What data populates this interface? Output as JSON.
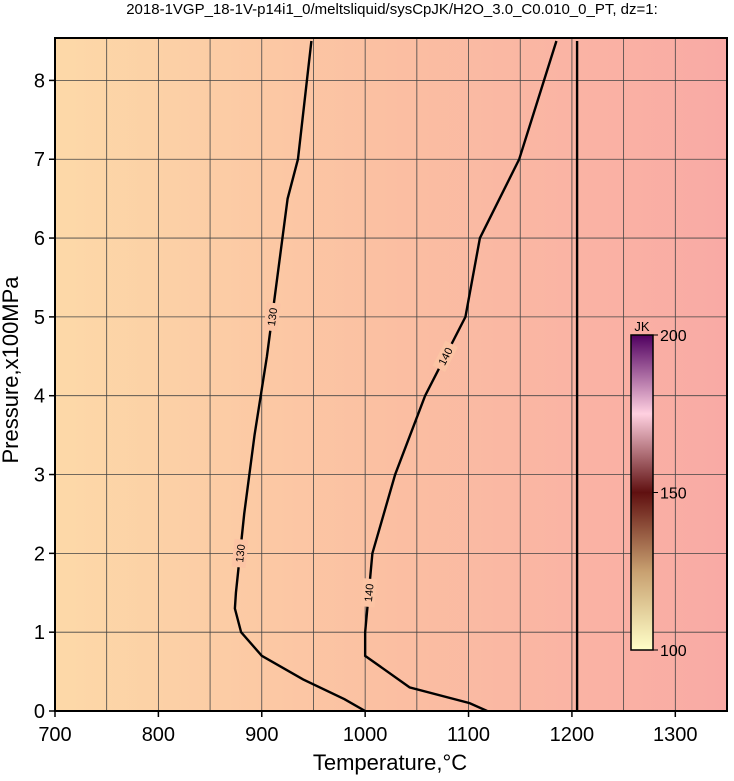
{
  "chart_data": {
    "type": "contour",
    "title": "2018-1VGP_18-1V-p14i1_0/meltsliquid/sysCpJK/H2O_3.0_C0.010_0_PT, dz=1:",
    "x_label": "Temperature,°C",
    "y_label": "Pressure,x100MPa",
    "xlim": [
      700,
      1350
    ],
    "ylim": [
      0,
      8.5
    ],
    "xticks": [
      700,
      800,
      900,
      1000,
      1100,
      1200,
      1300
    ],
    "xminor": [
      750,
      850,
      950,
      1050,
      1150,
      1250,
      1350
    ],
    "yticks": [
      0,
      1,
      2,
      3,
      4,
      5,
      6,
      7,
      8
    ],
    "grid": true,
    "background_colors": [
      "#fdd9a8",
      "#fbbfa2",
      "#f9aaa5"
    ],
    "lines": [
      {
        "label": "130",
        "level": 130,
        "x": [
          948,
          935,
          925,
          915,
          905,
          893,
          883,
          875,
          874,
          880,
          900,
          940,
          980,
          1000
        ],
        "y": [
          8.5,
          7,
          6.5,
          5.5,
          4.5,
          3.5,
          2.5,
          1.5,
          1.3,
          1.0,
          0.7,
          0.4,
          0.15,
          0
        ]
      },
      {
        "label": "140",
        "level": 140,
        "x": [
          1185,
          1149,
          1111,
          1097,
          1058,
          1029,
          1007,
          1000,
          1000,
          1043,
          1101,
          1118
        ],
        "y": [
          8.5,
          7,
          6,
          5,
          4,
          3,
          2,
          1,
          0.7,
          0.3,
          0.1,
          0
        ]
      },
      {
        "x": [
          1205,
          1205
        ],
        "y": [
          0,
          8.5
        ]
      }
    ],
    "colorbar": {
      "label": "JK",
      "lim": [
        100,
        200
      ],
      "ticks": [
        100,
        150,
        200
      ],
      "colors": [
        "#ffffc8",
        "#c8a070",
        "#601010",
        "#ffd0e0",
        "#500060"
      ]
    }
  }
}
